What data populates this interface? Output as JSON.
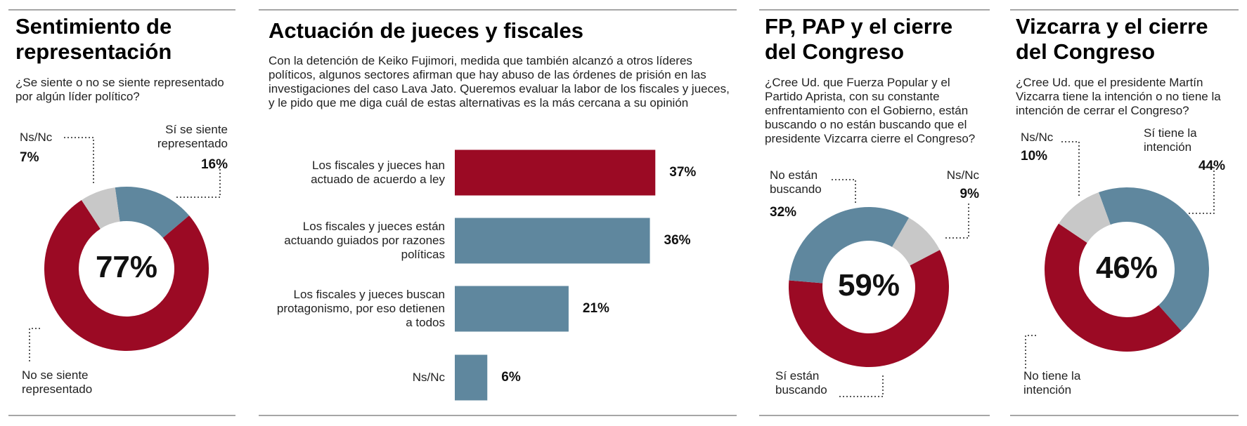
{
  "chart_data": [
    {
      "type": "pie",
      "donut": true,
      "title": "Sentimiento de representación",
      "subtitle": "¿Se siente o no se siente representado por algún líder político?",
      "categories": [
        "Sí se siente representado",
        "No se siente representado",
        "Ns/Nc"
      ],
      "values": [
        16,
        77,
        7
      ],
      "value_labels": [
        "16%",
        "77%",
        "7%"
      ],
      "colors": [
        "#5f879e",
        "#9b0a24",
        "#c8c8c8"
      ]
    },
    {
      "type": "bar",
      "orientation": "horizontal",
      "title": "Actuación de jueces y fiscales",
      "subtitle": "Con la detención de Keiko Fujimori, medida que también alcanzó a otros líderes políticos, algunos sectores afirman que hay abuso de las órdenes de prisión en las investigaciones del caso Lava Jato. Queremos evaluar la labor de los fiscales y jueces, y le pido que me diga cuál de estas alternativas es la más cercana a su opinión",
      "categories": [
        "Los fiscales y jueces han actuado de acuerdo a ley",
        "Los fiscales y jueces están actuando guiados por razones políticas",
        "Los fiscales y jueces buscan protagonismo, por eso detienen a todos",
        "Ns/Nc"
      ],
      "values": [
        37,
        36,
        21,
        6
      ],
      "value_labels": [
        "37%",
        "36%",
        "21%",
        "6%"
      ],
      "colors": [
        "#9b0a24",
        "#5f879e",
        "#5f879e",
        "#5f879e"
      ]
    },
    {
      "type": "pie",
      "donut": true,
      "title": "FP, PAP y el cierre del Congreso",
      "subtitle": "¿Cree Ud. que Fuerza Popular y el Partido Aprista, con su constante enfrentamiento con el Gobierno, están buscando o no están buscando que el presidente Vizcarra cierre el Congreso?",
      "categories": [
        "Ns/Nc",
        "Sí están buscando",
        "No están buscando"
      ],
      "values": [
        9,
        59,
        32
      ],
      "value_labels": [
        "9%",
        "59%",
        "32%"
      ],
      "colors": [
        "#c8c8c8",
        "#9b0a24",
        "#5f879e"
      ]
    },
    {
      "type": "pie",
      "donut": true,
      "title": "Vizcarra y el cierre del Congreso",
      "subtitle": "¿Cree Ud. que el presidente Martín Vizcarra tiene la intención o no tiene la intención de cerrar el Congreso?",
      "categories": [
        "Sí tiene la intención",
        "No tiene la intención",
        "Ns/Nc"
      ],
      "values": [
        44,
        46,
        10
      ],
      "value_labels": [
        "44%",
        "46%",
        "10%"
      ],
      "colors": [
        "#5f879e",
        "#9b0a24",
        "#c8c8c8"
      ]
    }
  ]
}
